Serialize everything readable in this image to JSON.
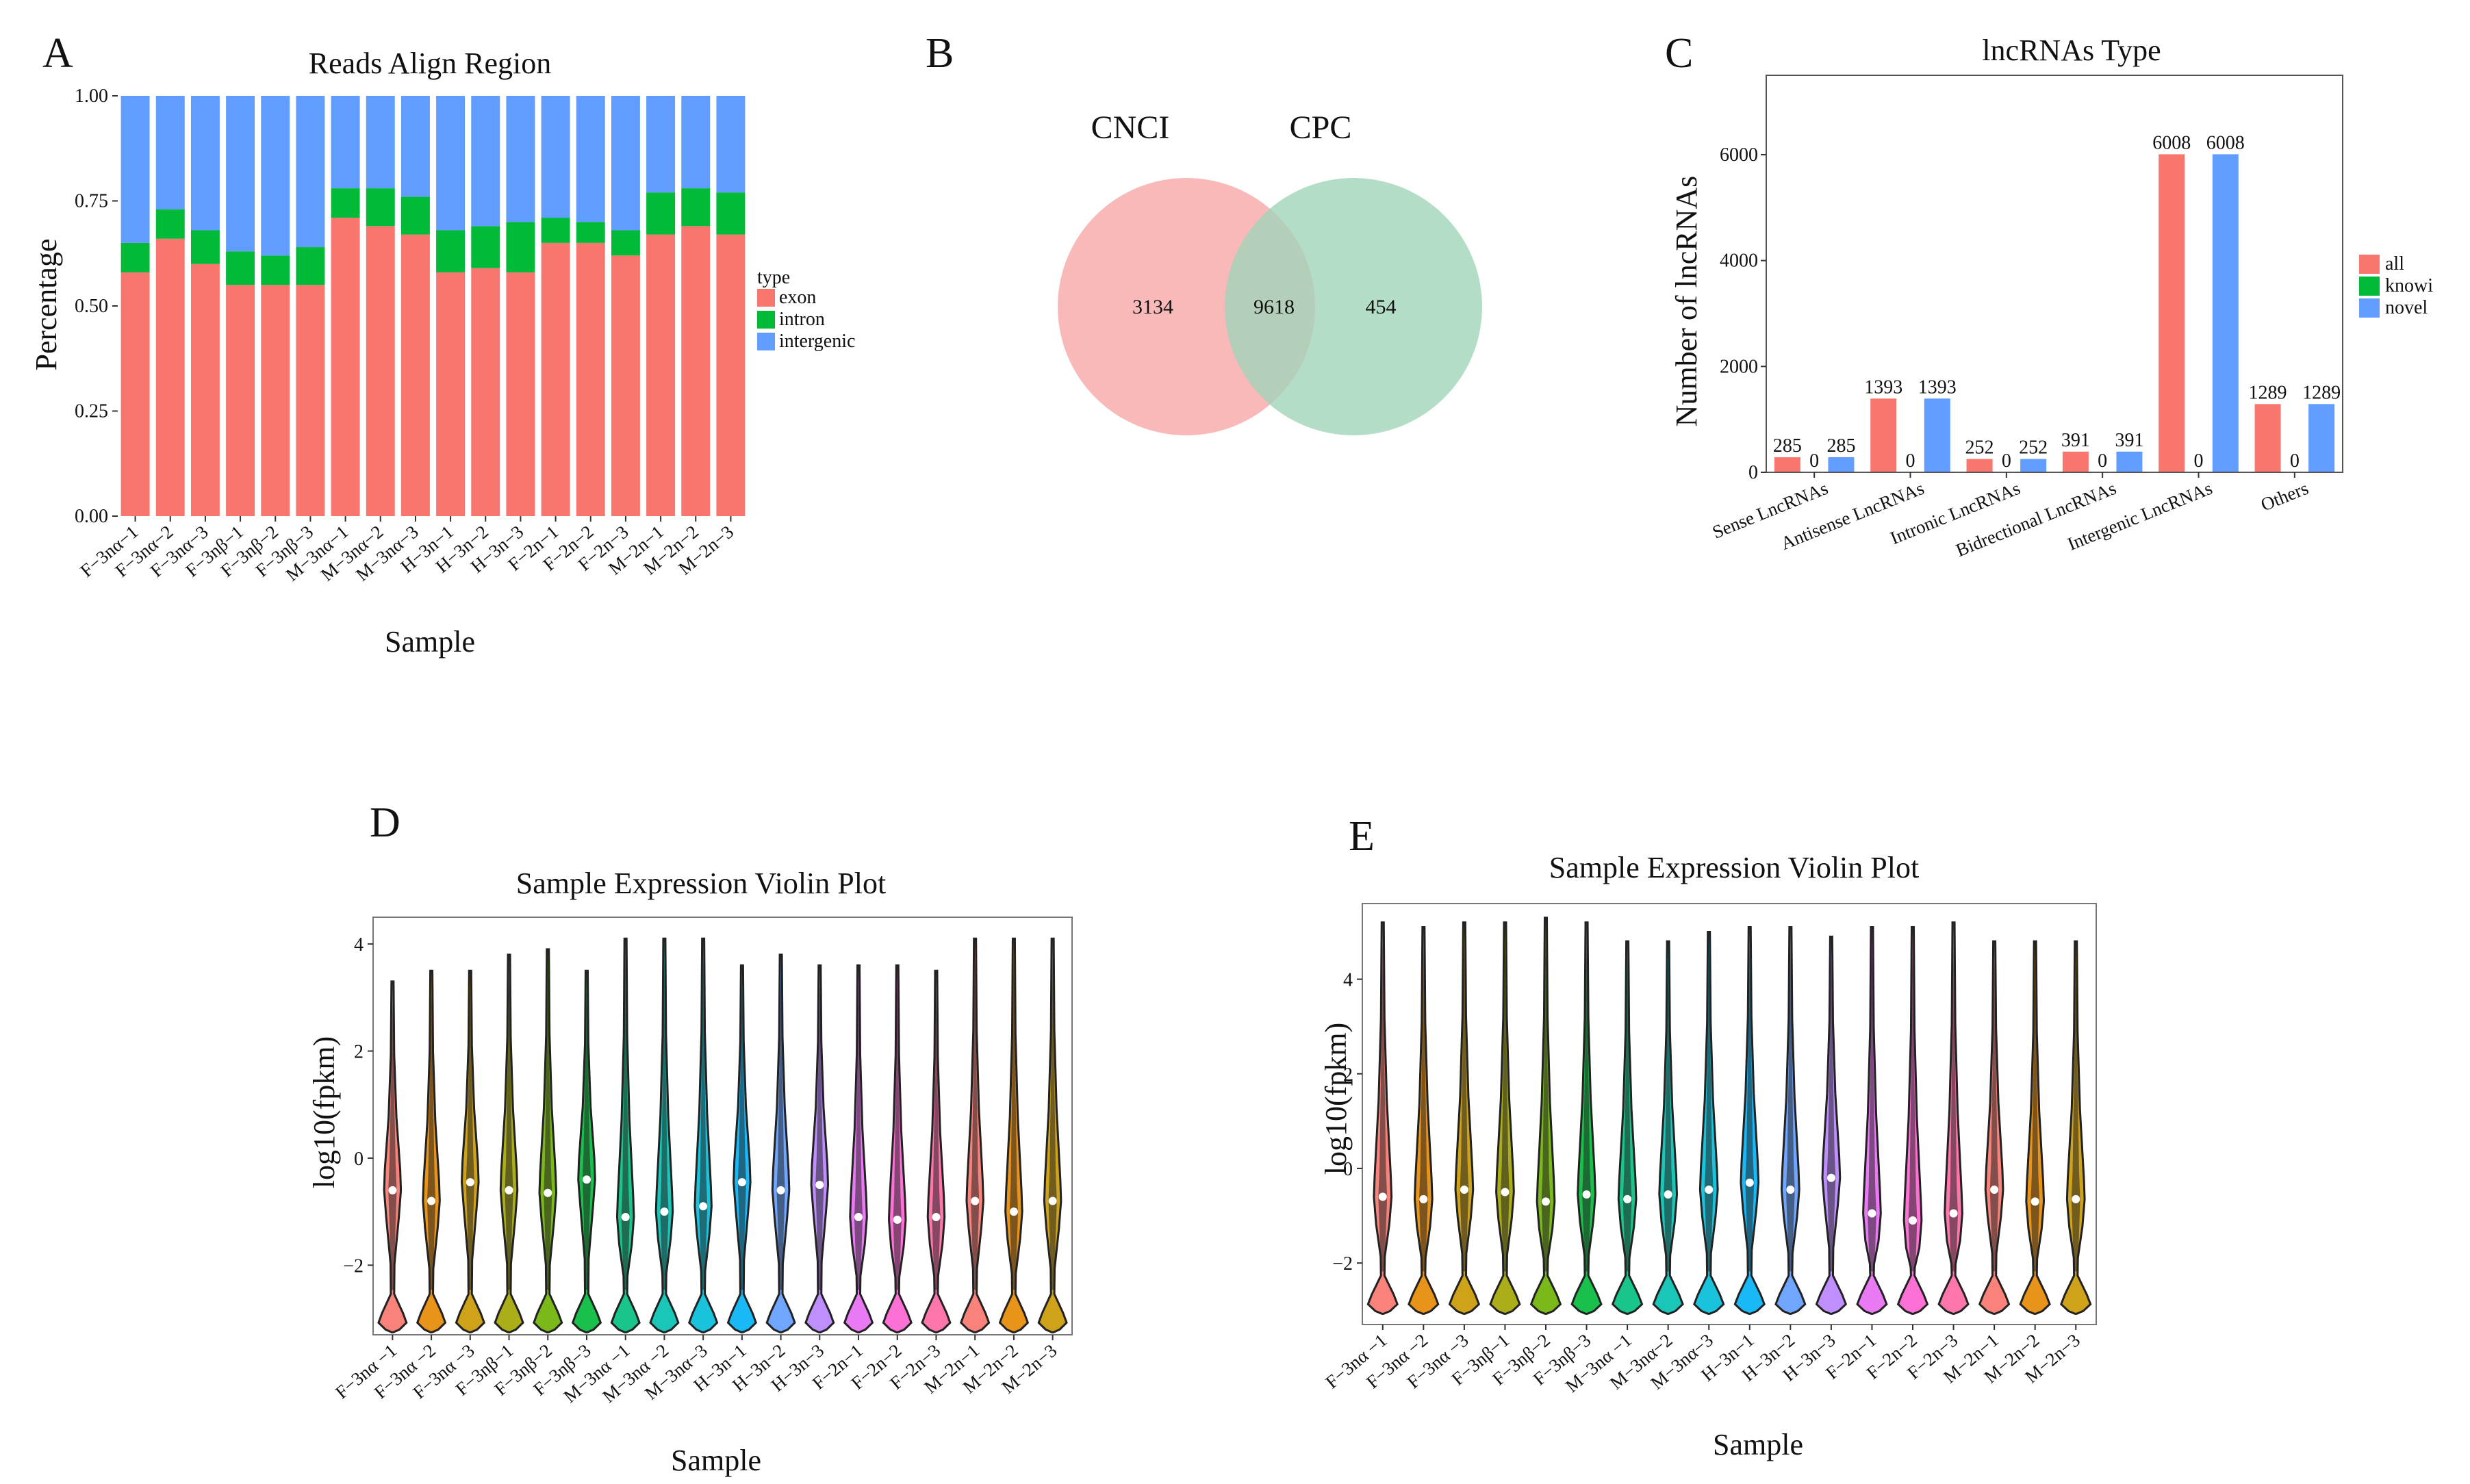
{
  "chart_data": [
    {
      "panel": "A",
      "type": "bar",
      "stacked": true,
      "title": "Reads Align Region",
      "xlabel": "Sample",
      "ylabel": "Percentage",
      "ylim": [
        0,
        1
      ],
      "yticks": [
        "0.00",
        "0.25",
        "0.50",
        "0.75",
        "1.00"
      ],
      "legend_title": "type",
      "categories": [
        "F−3nα−1",
        "F−3nα−2",
        "F−3nα−3",
        "F−3nβ−1",
        "F−3nβ−2",
        "F−3nβ−3",
        "M−3nα−1",
        "M−3nα−2",
        "M−3nα−3",
        "H−3n−1",
        "H−3n−2",
        "H−3n−3",
        "F−2n−1",
        "F−2n−2",
        "F−2n−3",
        "M−2n−1",
        "M−2n−2",
        "M−2n−3"
      ],
      "series": [
        {
          "name": "exon",
          "color": "#F8766D",
          "values": [
            0.58,
            0.66,
            0.6,
            0.55,
            0.55,
            0.55,
            0.71,
            0.69,
            0.67,
            0.58,
            0.59,
            0.58,
            0.65,
            0.65,
            0.62,
            0.67,
            0.69,
            0.67
          ]
        },
        {
          "name": "intron",
          "color": "#00BA38",
          "values": [
            0.07,
            0.07,
            0.08,
            0.08,
            0.07,
            0.09,
            0.07,
            0.09,
            0.09,
            0.1,
            0.1,
            0.12,
            0.06,
            0.05,
            0.06,
            0.1,
            0.09,
            0.1
          ]
        },
        {
          "name": "intergenic",
          "color": "#619CFF",
          "values": [
            0.35,
            0.27,
            0.32,
            0.37,
            0.38,
            0.36,
            0.22,
            0.22,
            0.24,
            0.32,
            0.31,
            0.3,
            0.29,
            0.3,
            0.32,
            0.23,
            0.22,
            0.23
          ]
        }
      ]
    },
    {
      "panel": "B",
      "type": "venn",
      "sets": [
        {
          "name": "CNCI",
          "color": "#F8A5A5",
          "only": "3134"
        },
        {
          "name": "CPC",
          "color": "#9FD3B8",
          "only": "454"
        }
      ],
      "overlap": "9618"
    },
    {
      "panel": "C",
      "type": "bar",
      "title": "lncRNAs Type",
      "xlabel": "",
      "ylabel": "Number of lncRNAs",
      "ylim": [
        0,
        7500
      ],
      "yticks": [
        "0",
        "2000",
        "4000",
        "6000"
      ],
      "categories": [
        "Sense LncRNAs",
        "Antisense LncRNAs",
        "Intronic LncRNAs",
        "Bidrectional LncRNAs",
        "Intergenic LncRNAs",
        "Others"
      ],
      "series": [
        {
          "name": "all",
          "color": "#F8766D",
          "values": [
            285,
            1393,
            252,
            391,
            6008,
            1289
          ],
          "labels": [
            "285",
            "1393",
            "252",
            "391",
            "6008",
            "1289"
          ]
        },
        {
          "name": "known",
          "legend_text": "knowi",
          "color": "#00BA38",
          "values": [
            0,
            0,
            0,
            0,
            0,
            0
          ],
          "labels": [
            "0",
            "0",
            "0",
            "0",
            "0",
            "0"
          ]
        },
        {
          "name": "novel",
          "color": "#619CFF",
          "values": [
            285,
            1393,
            252,
            391,
            6008,
            1289
          ],
          "labels": [
            "285",
            "1393",
            "252",
            "391",
            "6008",
            "1289"
          ]
        }
      ]
    },
    {
      "panel": "D",
      "type": "violin",
      "title": "Sample Expression Violin Plot",
      "xlabel": "Sample",
      "ylabel": "log10(fpkm)",
      "ylim": [
        -3.3,
        4.5
      ],
      "yticks": [
        -2,
        0,
        2,
        4
      ],
      "ytick_labels": [
        "−2",
        "0",
        "2",
        "4"
      ],
      "categories": [
        "F−3nα −1",
        "F−3nα −2",
        "F−3nα −3",
        "F−3nβ−1",
        "F−3nβ−2",
        "F−3nβ−3",
        "M−3nα −1",
        "M−3nα −2",
        "M−3nα−3",
        "H−3n−1",
        "H−3n−2",
        "H−3n−3",
        "F−2n−1",
        "F−2n−2",
        "F−2n−3",
        "M−2n−1",
        "M−2n−2",
        "M−2n−3"
      ],
      "colors": [
        "#F8766D",
        "#E58700",
        "#C99800",
        "#A3A500",
        "#6BB100",
        "#00BA38",
        "#00BF7D",
        "#00C0AF",
        "#00BCD8",
        "#00B0F6",
        "#619CFF",
        "#B983FF",
        "#E76BF3",
        "#FD61D1",
        "#FF67A4",
        "#F8766D",
        "#E58700",
        "#C99800"
      ],
      "max": [
        3.3,
        3.5,
        3.5,
        3.8,
        3.9,
        3.5,
        4.1,
        4.1,
        4.1,
        3.6,
        3.8,
        3.6,
        3.6,
        3.6,
        3.5,
        4.1,
        4.1,
        4.1
      ],
      "median": [
        -0.6,
        -0.8,
        -0.45,
        -0.6,
        -0.65,
        -0.4,
        -1.1,
        -1.0,
        -0.9,
        -0.45,
        -0.6,
        -0.5,
        -1.1,
        -1.15,
        -1.1,
        -0.8,
        -1.0,
        -0.8
      ],
      "min": -3.1
    },
    {
      "panel": "E",
      "type": "violin",
      "title": "Sample Expression Violin Plot",
      "xlabel": "Sample",
      "ylabel": "log10(fpkm)",
      "ylim": [
        -3.3,
        5.6
      ],
      "yticks": [
        -2,
        0,
        2,
        4
      ],
      "ytick_labels": [
        "−2",
        "0",
        "2",
        "4"
      ],
      "categories": [
        "F−3nα −1",
        "F−3nα −2",
        "F−3nα −3",
        "F−3nβ−1",
        "F−3nβ−2",
        "F−3nβ−3",
        "M−3nα −1",
        "M−3nα−2",
        "M−3nα−3",
        "H−3n−1",
        "H−3n−2",
        "H−3n−3",
        "F−2n−1",
        "F−2n−2",
        "F−2n−3",
        "M−2n−1",
        "M−2n−2",
        "M−2n−3"
      ],
      "colors": [
        "#F8766D",
        "#E58700",
        "#C99800",
        "#A3A500",
        "#6BB100",
        "#00BA38",
        "#00BF7D",
        "#00C0AF",
        "#00BCD8",
        "#00B0F6",
        "#619CFF",
        "#B983FF",
        "#E76BF3",
        "#FD61D1",
        "#FF67A4",
        "#F8766D",
        "#E58700",
        "#C99800"
      ],
      "max": [
        5.2,
        5.1,
        5.2,
        5.2,
        5.3,
        5.2,
        4.8,
        4.8,
        5.0,
        5.1,
        5.1,
        4.9,
        5.1,
        5.1,
        5.2,
        4.8,
        4.8,
        4.8
      ],
      "median": [
        -0.6,
        -0.65,
        -0.45,
        -0.5,
        -0.7,
        -0.55,
        -0.65,
        -0.55,
        -0.45,
        -0.3,
        -0.45,
        -0.2,
        -0.95,
        -1.1,
        -0.95,
        -0.45,
        -0.7,
        -0.65
      ],
      "min": -2.9
    }
  ]
}
